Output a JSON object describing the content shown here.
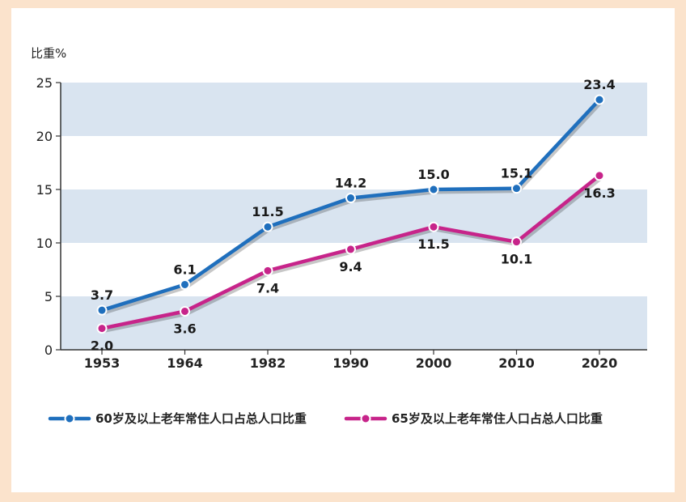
{
  "chart_data": {
    "type": "line",
    "ylabel": "比重%",
    "ylim": [
      0,
      25
    ],
    "yticks": [
      0,
      5,
      10,
      15,
      20,
      25
    ],
    "categories": [
      "1953",
      "1964",
      "1982",
      "1990",
      "2000",
      "2010",
      "2020"
    ],
    "series": [
      {
        "name": "60岁及以上老年常住人口占总人口比重",
        "color": "#1f6fbd",
        "values": [
          3.7,
          6.1,
          11.5,
          14.2,
          15.0,
          15.1,
          23.4
        ],
        "labels": [
          "3.7",
          "6.1",
          "11.5",
          "14.2",
          "15.0",
          "15.1",
          "23.4"
        ]
      },
      {
        "name": "65岁及以上老年常住人口占总人口比重",
        "color": "#c7248a",
        "values": [
          2.0,
          3.6,
          7.4,
          9.4,
          11.5,
          10.1,
          16.3
        ],
        "labels": [
          "2.0",
          "3.6",
          "7.4",
          "9.4",
          "11.5",
          "10.1",
          "16.3"
        ]
      }
    ],
    "grid": "alternating horizontal bands",
    "legend_position": "bottom",
    "band_color": "#d9e4f0"
  }
}
